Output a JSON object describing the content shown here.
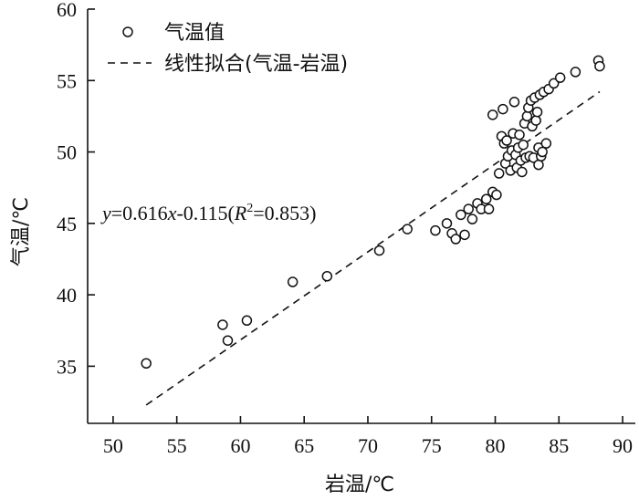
{
  "chart_data": {
    "type": "scatter",
    "xlabel": "岩温/℃",
    "ylabel": "气温/℃",
    "xlim": [
      48,
      91
    ],
    "ylim": [
      31,
      60
    ],
    "xticks": [
      50,
      55,
      60,
      65,
      70,
      75,
      80,
      85,
      90
    ],
    "yticks": [
      35,
      40,
      45,
      50,
      55,
      60
    ],
    "grid": false,
    "legend_position": "top-left",
    "legend": [
      {
        "label": "气温值",
        "marker": "open-circle"
      },
      {
        "label": "线性拟合(气温-岩温)",
        "marker": "dashed-line"
      }
    ],
    "series": [
      {
        "name": "气温值",
        "marker": "open-circle",
        "points": [
          [
            52.6,
            35.2
          ],
          [
            58.6,
            37.9
          ],
          [
            59.0,
            36.8
          ],
          [
            60.5,
            38.2
          ],
          [
            64.1,
            40.9
          ],
          [
            66.8,
            41.3
          ],
          [
            70.9,
            43.1
          ],
          [
            73.1,
            44.6
          ],
          [
            75.3,
            44.5
          ],
          [
            76.2,
            45.0
          ],
          [
            76.6,
            44.3
          ],
          [
            76.9,
            43.9
          ],
          [
            77.3,
            45.6
          ],
          [
            77.6,
            44.2
          ],
          [
            77.9,
            46.0
          ],
          [
            78.2,
            45.3
          ],
          [
            78.6,
            46.4
          ],
          [
            78.9,
            46.0
          ],
          [
            79.3,
            46.7
          ],
          [
            79.5,
            46.0
          ],
          [
            79.8,
            47.2
          ],
          [
            79.8,
            52.6
          ],
          [
            80.1,
            47.0
          ],
          [
            80.3,
            48.5
          ],
          [
            80.5,
            51.1
          ],
          [
            80.6,
            53.0
          ],
          [
            80.7,
            50.6
          ],
          [
            80.8,
            49.2
          ],
          [
            80.9,
            50.8
          ],
          [
            81.0,
            49.7
          ],
          [
            81.2,
            48.7
          ],
          [
            81.3,
            50.1
          ],
          [
            81.4,
            51.3
          ],
          [
            81.5,
            53.5
          ],
          [
            81.6,
            49.8
          ],
          [
            81.7,
            48.9
          ],
          [
            81.8,
            50.3
          ],
          [
            81.9,
            51.2
          ],
          [
            82.0,
            49.4
          ],
          [
            82.1,
            48.6
          ],
          [
            82.2,
            50.5
          ],
          [
            82.3,
            52.0
          ],
          [
            82.4,
            49.6
          ],
          [
            82.5,
            52.5
          ],
          [
            82.6,
            53.1
          ],
          [
            82.7,
            49.7
          ],
          [
            82.8,
            53.6
          ],
          [
            82.9,
            51.8
          ],
          [
            83.0,
            49.6
          ],
          [
            83.1,
            53.8
          ],
          [
            83.2,
            52.2
          ],
          [
            83.3,
            52.8
          ],
          [
            83.4,
            50.3
          ],
          [
            83.4,
            49.1
          ],
          [
            83.5,
            54.0
          ],
          [
            83.6,
            49.7
          ],
          [
            83.7,
            50.0
          ],
          [
            83.8,
            54.2
          ],
          [
            84.0,
            50.6
          ],
          [
            84.2,
            54.4
          ],
          [
            84.6,
            54.8
          ],
          [
            85.1,
            55.2
          ],
          [
            86.3,
            55.6
          ],
          [
            88.1,
            56.4
          ],
          [
            88.2,
            56.0
          ]
        ]
      }
    ],
    "fit_line": {
      "name": "线性拟合(气温-岩温)",
      "slope": 0.616,
      "intercept": -0.115,
      "x_range": [
        52.6,
        88.2
      ],
      "equation_parts": {
        "y": "y",
        "eq_mid": "=0.616",
        "x": "x",
        "eq_rest": "-0.115(",
        "R": "R",
        "sup": "2",
        "r2_value": "=0.853)"
      }
    }
  }
}
